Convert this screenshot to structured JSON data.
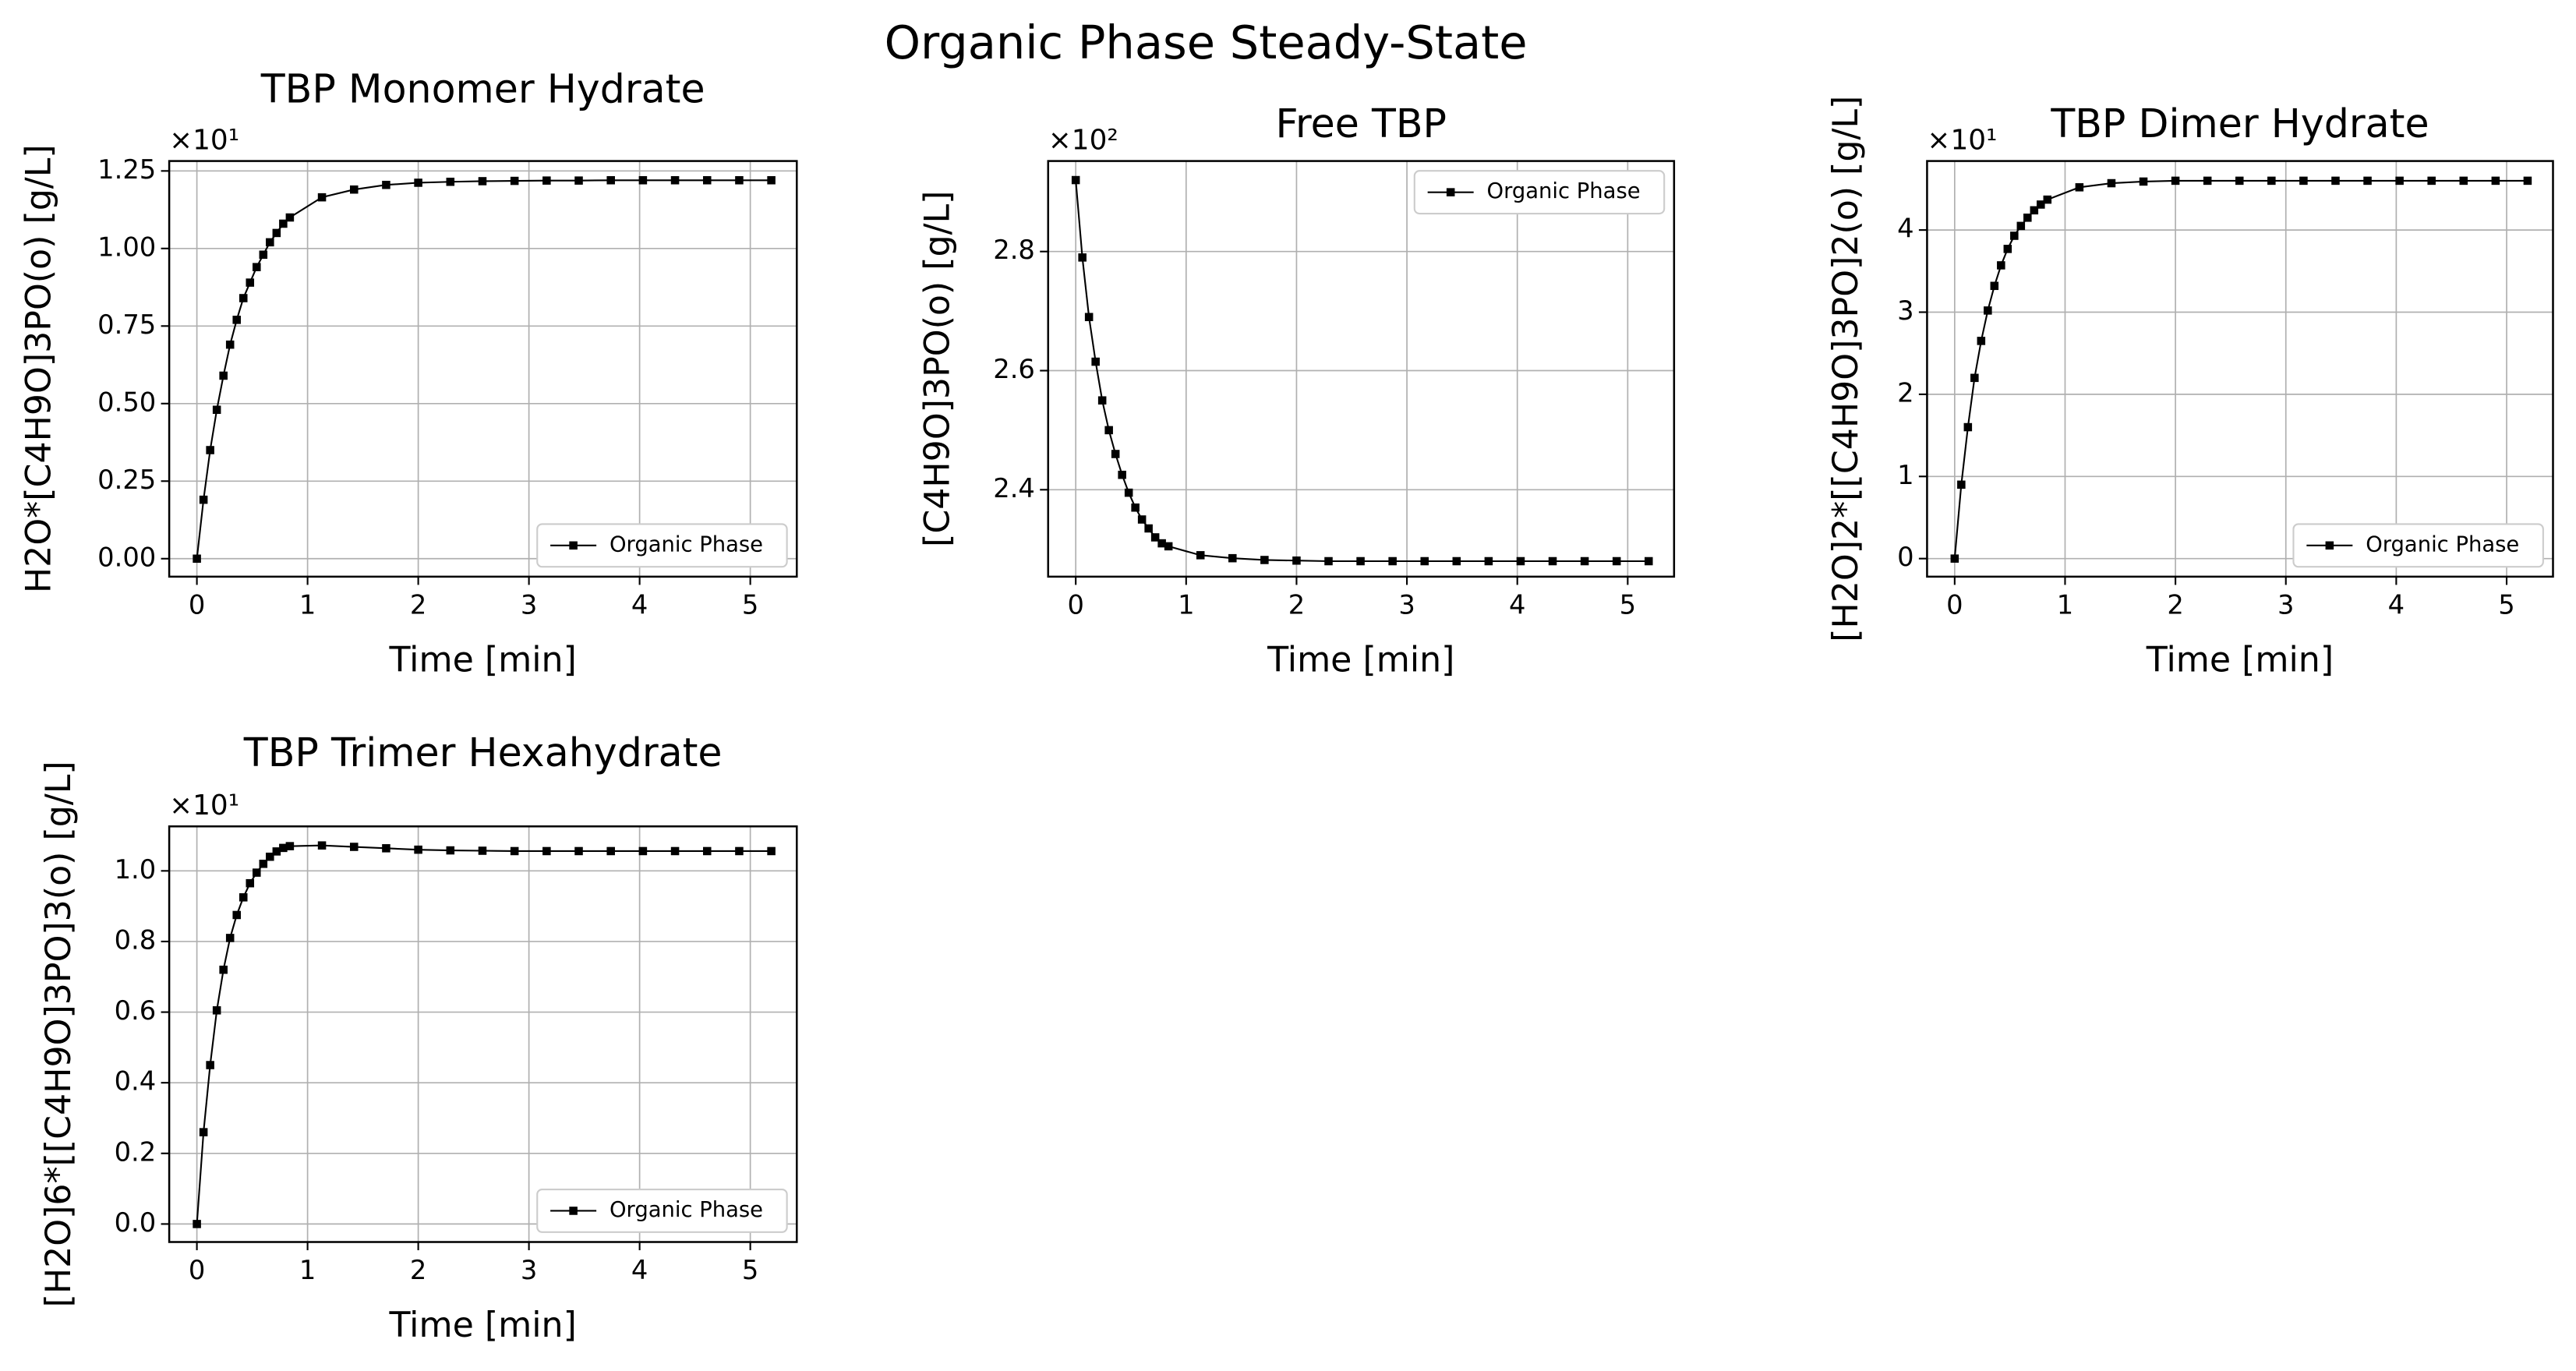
{
  "title": "Organic Phase Steady-State",
  "chart_data": [
    {
      "type": "line",
      "title": "TBP Monomer Hydrate",
      "xlabel": "Time [min]",
      "ylabel": "H2O*[C4H9O]3PO(o) [g/L]",
      "y_scale_label": "×10¹",
      "x": [
        0,
        0.06,
        0.12,
        0.18,
        0.24,
        0.3,
        0.36,
        0.42,
        0.48,
        0.54,
        0.6,
        0.66,
        0.72,
        0.78,
        0.84,
        1.13,
        1.42,
        1.71,
        2.0,
        2.29,
        2.58,
        2.87,
        3.16,
        3.45,
        3.74,
        4.03,
        4.32,
        4.61,
        4.9,
        5.19
      ],
      "series": [
        {
          "name": "Organic Phase",
          "color": "#000000",
          "values": [
            0,
            0.19,
            0.35,
            0.48,
            0.59,
            0.69,
            0.77,
            0.84,
            0.89,
            0.94,
            0.98,
            1.02,
            1.05,
            1.08,
            1.1,
            1.165,
            1.19,
            1.205,
            1.212,
            1.215,
            1.217,
            1.218,
            1.219,
            1.219,
            1.22,
            1.22,
            1.22,
            1.22,
            1.22,
            1.22
          ]
        }
      ],
      "xlim": [
        -0.25,
        5.42
      ],
      "xticks": [
        0,
        1,
        2,
        3,
        4,
        5
      ],
      "ylim": [
        -0.058,
        1.282
      ],
      "yticks": [
        {
          "value": 0,
          "label": "0.00"
        },
        0.25,
        {
          "value": 0.5,
          "label": "0.50"
        },
        0.75,
        {
          "value": 1,
          "label": "1.00"
        },
        1.25
      ],
      "grid": true,
      "legend": "lower right"
    },
    {
      "type": "line",
      "title": "Free TBP",
      "xlabel": "Time [min]",
      "ylabel": "[C4H9O]3PO(o) [g/L]",
      "y_scale_label": "×10²",
      "x": [
        0,
        0.06,
        0.12,
        0.18,
        0.24,
        0.3,
        0.36,
        0.42,
        0.48,
        0.54,
        0.6,
        0.66,
        0.72,
        0.78,
        0.84,
        1.13,
        1.42,
        1.71,
        2.0,
        2.29,
        2.58,
        2.87,
        3.16,
        3.45,
        3.74,
        4.03,
        4.32,
        4.61,
        4.9,
        5.19
      ],
      "series": [
        {
          "name": "Organic Phase",
          "color": "#000000",
          "values": [
            2.92,
            2.79,
            2.69,
            2.615,
            2.55,
            2.5,
            2.46,
            2.425,
            2.395,
            2.37,
            2.35,
            2.335,
            2.32,
            2.31,
            2.305,
            2.29,
            2.285,
            2.282,
            2.281,
            2.28,
            2.28,
            2.28,
            2.28,
            2.28,
            2.28,
            2.28,
            2.28,
            2.28,
            2.28,
            2.28
          ]
        }
      ],
      "xlim": [
        -0.25,
        5.42
      ],
      "xticks": [
        0,
        1,
        2,
        3,
        4,
        5
      ],
      "ylim": [
        2.254,
        2.952
      ],
      "yticks": [
        2.4,
        2.6,
        2.8
      ],
      "grid": true,
      "legend": "upper right"
    },
    {
      "type": "line",
      "title": "TBP Dimer Hydrate",
      "xlabel": "Time [min]",
      "ylabel": "[H2O]2*[[C4H9O]3PO]2(o) [g/L]",
      "y_scale_label": "×10¹",
      "x": [
        0,
        0.06,
        0.12,
        0.18,
        0.24,
        0.3,
        0.36,
        0.42,
        0.48,
        0.54,
        0.6,
        0.66,
        0.72,
        0.78,
        0.84,
        1.13,
        1.42,
        1.71,
        2.0,
        2.29,
        2.58,
        2.87,
        3.16,
        3.45,
        3.74,
        4.03,
        4.32,
        4.61,
        4.9,
        5.19
      ],
      "series": [
        {
          "name": "Organic Phase",
          "color": "#000000",
          "values": [
            0,
            0.9,
            1.6,
            2.2,
            2.65,
            3.02,
            3.32,
            3.57,
            3.77,
            3.93,
            4.05,
            4.15,
            4.24,
            4.31,
            4.37,
            4.52,
            4.57,
            4.59,
            4.6,
            4.6,
            4.6,
            4.6,
            4.6,
            4.6,
            4.6,
            4.6,
            4.6,
            4.6,
            4.6,
            4.6
          ]
        }
      ],
      "xlim": [
        -0.25,
        5.42
      ],
      "xticks": [
        0,
        1,
        2,
        3,
        4,
        5
      ],
      "ylim": [
        -0.22,
        4.84
      ],
      "yticks": [
        0,
        1,
        2,
        3,
        4
      ],
      "grid": true,
      "legend": "lower right"
    },
    {
      "type": "line",
      "title": "TBP Trimer Hexahydrate",
      "xlabel": "Time [min]",
      "ylabel": "[H2O]6*[[C4H9O]3PO]3(o) [g/L]",
      "y_scale_label": "×10¹",
      "x": [
        0,
        0.06,
        0.12,
        0.18,
        0.24,
        0.3,
        0.36,
        0.42,
        0.48,
        0.54,
        0.6,
        0.66,
        0.72,
        0.78,
        0.84,
        1.13,
        1.42,
        1.71,
        2.0,
        2.29,
        2.58,
        2.87,
        3.16,
        3.45,
        3.74,
        4.03,
        4.32,
        4.61,
        4.9,
        5.19
      ],
      "series": [
        {
          "name": "Organic Phase",
          "color": "#000000",
          "values": [
            0,
            0.26,
            0.45,
            0.605,
            0.72,
            0.81,
            0.875,
            0.925,
            0.965,
            0.995,
            1.02,
            1.04,
            1.055,
            1.065,
            1.07,
            1.072,
            1.068,
            1.064,
            1.06,
            1.058,
            1.057,
            1.056,
            1.056,
            1.056,
            1.056,
            1.056,
            1.056,
            1.056,
            1.056,
            1.056
          ]
        }
      ],
      "xlim": [
        -0.25,
        5.42
      ],
      "xticks": [
        0,
        1,
        2,
        3,
        4,
        5
      ],
      "ylim": [
        -0.051,
        1.126
      ],
      "yticks": [
        {
          "value": 0,
          "label": "0.0"
        },
        0.2,
        0.4,
        0.6,
        0.8,
        {
          "value": 1,
          "label": "1.0"
        }
      ],
      "grid": true,
      "legend": "lower right"
    }
  ]
}
